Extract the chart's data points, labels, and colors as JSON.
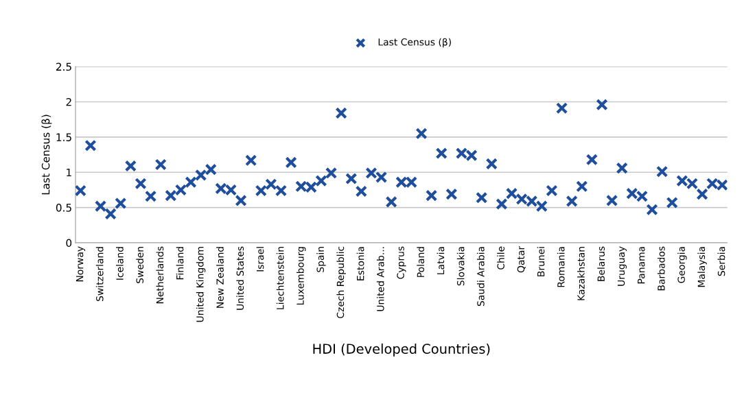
{
  "chart_data": {
    "type": "scatter",
    "xlabel": "HDI (Developed Countries)",
    "ylabel": "Last Census (β)",
    "categories": [
      "Norway",
      null,
      "Switzerland",
      null,
      "Iceland",
      null,
      "Sweden",
      null,
      "Netherlands",
      null,
      "Finland",
      null,
      "United Kingdom",
      null,
      "New Zealand",
      null,
      "United States",
      null,
      "Israel",
      null,
      "Liechtenstein",
      null,
      "Luxembourg",
      null,
      "Spain",
      null,
      "Czech Republic",
      null,
      "Estonia",
      null,
      "United Arab...",
      null,
      "Cyprus",
      null,
      "Poland",
      null,
      "Latvia",
      null,
      "Slovakia",
      null,
      "Saudi Arabia",
      null,
      "Chile",
      null,
      "Qatar",
      null,
      "Brunei",
      null,
      "Romania",
      null,
      "Kazakhstan",
      null,
      "Belarus",
      null,
      "Uruguay",
      null,
      "Panama",
      null,
      "Barbados",
      null,
      "Georgia",
      null,
      "Malaysia",
      null,
      "Serbia"
    ],
    "series": [
      {
        "name": "Last Census (β)",
        "color": "#1f4e9c",
        "values": [
          0.74,
          1.38,
          0.52,
          0.41,
          0.56,
          1.09,
          0.84,
          0.66,
          1.11,
          0.67,
          0.75,
          0.86,
          0.96,
          1.04,
          0.77,
          0.75,
          0.6,
          1.17,
          0.74,
          0.83,
          0.74,
          1.14,
          0.8,
          0.79,
          0.88,
          0.99,
          1.84,
          0.91,
          0.73,
          0.99,
          0.93,
          0.58,
          0.86,
          0.86,
          1.55,
          0.67,
          1.27,
          0.69,
          1.27,
          1.24,
          0.64,
          1.12,
          0.55,
          0.7,
          0.62,
          0.59,
          0.52,
          0.74,
          1.91,
          0.59,
          0.8,
          1.18,
          1.96,
          0.6,
          1.06,
          0.7,
          0.66,
          0.47,
          1.01,
          0.57,
          0.88,
          0.84,
          0.69,
          0.84,
          0.82
        ]
      }
    ],
    "ylim": [
      0,
      2.5
    ],
    "yticks": [
      0,
      0.5,
      1,
      1.5,
      2,
      2.5
    ],
    "grid": "y",
    "legend": "top",
    "marker": "cross"
  }
}
